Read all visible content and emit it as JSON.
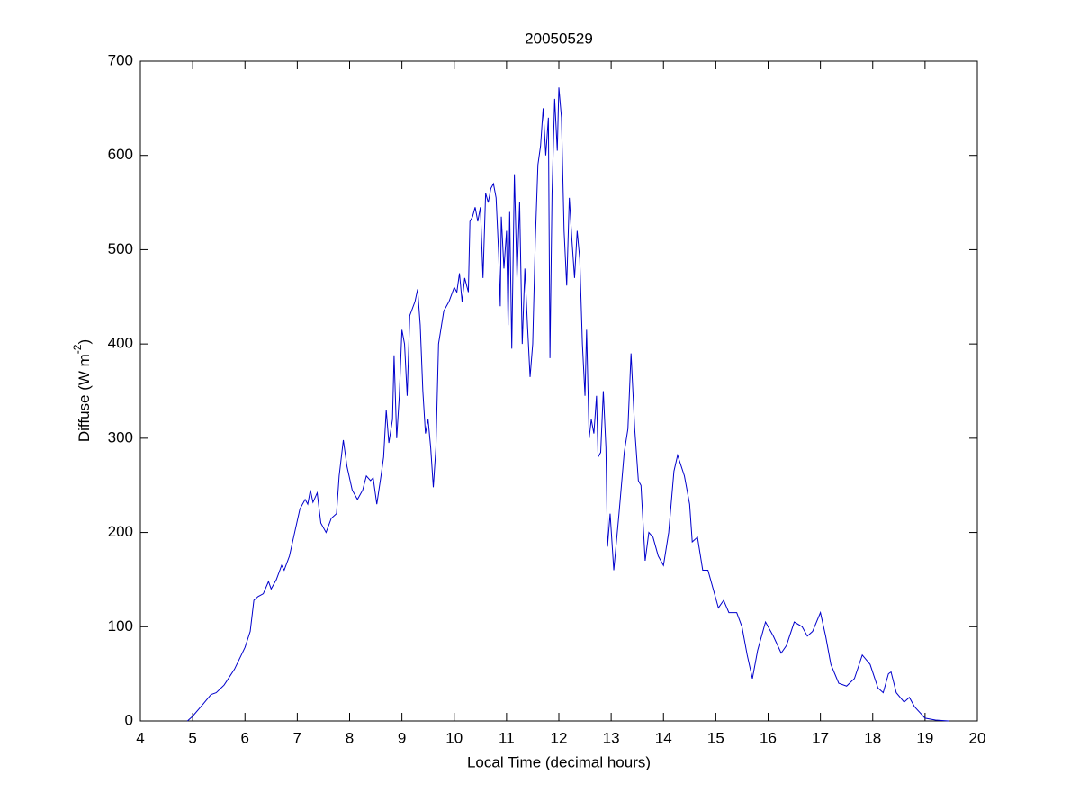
{
  "chart_data": {
    "type": "line",
    "title": "20050529",
    "xlabel": "Local Time (decimal hours)",
    "ylabel": [
      "Diffuse (W m",
      "-2",
      ")"
    ],
    "color": "#0000cc",
    "xlim": [
      4,
      20
    ],
    "xticks": [
      4,
      5,
      6,
      7,
      8,
      9,
      10,
      11,
      12,
      13,
      14,
      15,
      16,
      17,
      18,
      19,
      20
    ],
    "ylim": [
      0,
      700
    ],
    "yticks": [
      0,
      100,
      200,
      300,
      400,
      500,
      600,
      700
    ],
    "x": [
      4.9,
      5.0,
      5.2,
      5.35,
      5.45,
      5.6,
      5.8,
      6.0,
      6.1,
      6.17,
      6.25,
      6.35,
      6.45,
      6.5,
      6.6,
      6.7,
      6.75,
      6.85,
      6.95,
      7.05,
      7.15,
      7.2,
      7.25,
      7.3,
      7.38,
      7.45,
      7.55,
      7.65,
      7.75,
      7.8,
      7.88,
      7.95,
      8.05,
      8.15,
      8.25,
      8.32,
      8.4,
      8.45,
      8.52,
      8.6,
      8.65,
      8.7,
      8.75,
      8.82,
      8.85,
      8.9,
      8.95,
      9.0,
      9.05,
      9.1,
      9.15,
      9.25,
      9.3,
      9.35,
      9.4,
      9.45,
      9.5,
      9.55,
      9.6,
      9.65,
      9.7,
      9.8,
      9.9,
      10.0,
      10.05,
      10.1,
      10.15,
      10.2,
      10.27,
      10.3,
      10.35,
      10.4,
      10.45,
      10.5,
      10.55,
      10.6,
      10.65,
      10.7,
      10.75,
      10.8,
      10.85,
      10.88,
      10.9,
      10.95,
      11.0,
      11.03,
      11.06,
      11.1,
      11.15,
      11.2,
      11.25,
      11.3,
      11.35,
      11.4,
      11.45,
      11.5,
      11.55,
      11.6,
      11.65,
      11.7,
      11.75,
      11.8,
      11.83,
      11.87,
      11.92,
      11.97,
      12.0,
      12.05,
      12.1,
      12.15,
      12.2,
      12.25,
      12.3,
      12.35,
      12.4,
      12.45,
      12.5,
      12.53,
      12.58,
      12.62,
      12.67,
      12.72,
      12.75,
      12.8,
      12.85,
      12.9,
      12.93,
      12.98,
      13.05,
      13.15,
      13.25,
      13.32,
      13.38,
      13.45,
      13.52,
      13.57,
      13.65,
      13.72,
      13.8,
      13.9,
      14.0,
      14.1,
      14.2,
      14.27,
      14.4,
      14.5,
      14.55,
      14.65,
      14.75,
      14.85,
      14.95,
      15.05,
      15.15,
      15.25,
      15.4,
      15.5,
      15.6,
      15.7,
      15.8,
      15.95,
      16.1,
      16.25,
      16.35,
      16.5,
      16.65,
      16.75,
      16.85,
      17.0,
      17.1,
      17.2,
      17.35,
      17.5,
      17.65,
      17.8,
      17.95,
      18.1,
      18.2,
      18.3,
      18.35,
      18.45,
      18.6,
      18.7,
      18.8,
      19.0,
      19.2,
      19.45
    ],
    "values": [
      0,
      5,
      18,
      28,
      30,
      38,
      55,
      78,
      95,
      128,
      132,
      135,
      148,
      140,
      150,
      165,
      160,
      175,
      200,
      225,
      235,
      230,
      245,
      232,
      242,
      210,
      200,
      215,
      220,
      260,
      298,
      270,
      245,
      235,
      245,
      260,
      255,
      258,
      230,
      260,
      280,
      330,
      295,
      320,
      388,
      300,
      345,
      415,
      400,
      345,
      430,
      445,
      458,
      420,
      350,
      305,
      320,
      290,
      248,
      290,
      400,
      435,
      445,
      460,
      455,
      475,
      445,
      470,
      455,
      530,
      535,
      545,
      530,
      545,
      470,
      560,
      550,
      565,
      570,
      555,
      495,
      440,
      535,
      480,
      520,
      420,
      540,
      395,
      580,
      470,
      550,
      400,
      480,
      420,
      365,
      400,
      510,
      590,
      610,
      650,
      600,
      640,
      385,
      560,
      660,
      605,
      672,
      640,
      520,
      462,
      555,
      510,
      470,
      520,
      490,
      400,
      345,
      415,
      300,
      320,
      305,
      345,
      280,
      285,
      350,
      290,
      185,
      220,
      160,
      220,
      285,
      310,
      390,
      310,
      255,
      250,
      170,
      200,
      195,
      175,
      165,
      200,
      265,
      282,
      260,
      230,
      190,
      195,
      160,
      160,
      140,
      120,
      128,
      115,
      115,
      100,
      70,
      45,
      75,
      105,
      90,
      72,
      80,
      105,
      100,
      90,
      95,
      115,
      90,
      60,
      40,
      37,
      45,
      70,
      60,
      35,
      30,
      50,
      52,
      30,
      20,
      25,
      15,
      3,
      1,
      0
    ]
  }
}
